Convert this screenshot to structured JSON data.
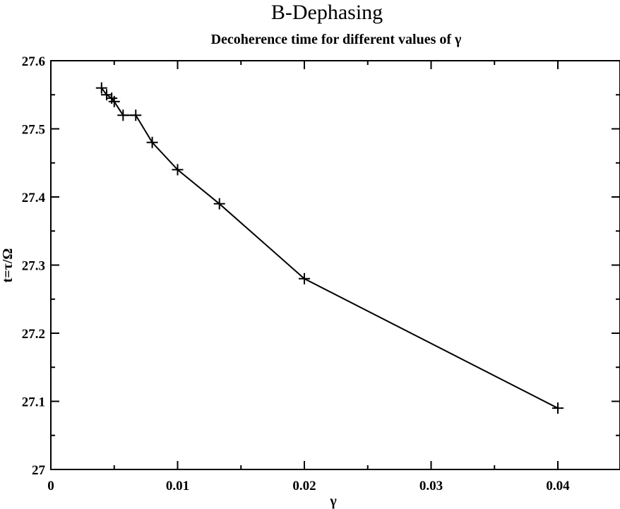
{
  "chart_data": {
    "type": "line",
    "title": "B-Dephasing",
    "subtitle": "Decoherence time for different values of γ",
    "xlabel": "γ",
    "ylabel": "t=τ/Ω",
    "xlim": [
      0,
      0.045
    ],
    "ylim": [
      27.0,
      27.6
    ],
    "x_ticks": [
      0,
      0.01,
      0.02,
      0.03,
      0.04
    ],
    "x_tick_labels": [
      "0",
      "0.01",
      "0.02",
      "0.03",
      "0.04"
    ],
    "y_ticks": [
      27.0,
      27.1,
      27.2,
      27.3,
      27.4,
      27.5,
      27.6
    ],
    "y_tick_labels": [
      "27",
      "27.1",
      "27.2",
      "27.3",
      "27.4",
      "27.5",
      "27.6"
    ],
    "grid": false,
    "legend": "none",
    "marker": "plus",
    "line_color": "#000000",
    "series": [
      {
        "x": [
          0.004,
          0.0044,
          0.0048,
          0.005,
          0.0057,
          0.0067,
          0.008,
          0.01,
          0.0133,
          0.02,
          0.04
        ],
        "y": [
          27.56,
          27.55,
          27.545,
          27.54,
          27.52,
          27.52,
          27.48,
          27.44,
          27.39,
          27.28,
          27.09
        ]
      }
    ]
  }
}
